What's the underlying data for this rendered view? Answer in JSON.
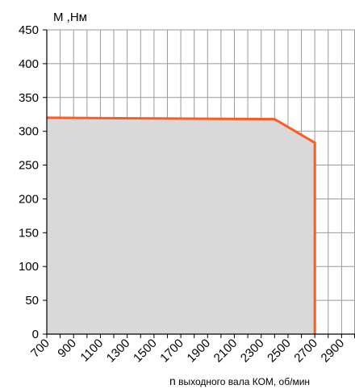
{
  "chart_data": {
    "type": "area",
    "ylabel": "M ,Нм",
    "xlabel_var": "n",
    "xlabel_rest": " выходного вала КОМ, об/мин",
    "xlim": [
      700,
      3000
    ],
    "ylim": [
      0,
      450
    ],
    "x_ticks": [
      700,
      900,
      1100,
      1300,
      1500,
      1700,
      1900,
      2100,
      2300,
      2500,
      2700,
      2900
    ],
    "x_tick_labels": [
      "700",
      "900",
      "1100",
      "1300",
      "1500",
      "1700",
      "1900",
      "2100",
      "2300",
      "2500",
      "2700",
      "2900"
    ],
    "y_ticks": [
      0,
      50,
      100,
      150,
      200,
      250,
      300,
      350,
      400,
      450
    ],
    "y_tick_labels": [
      "0",
      "50",
      "100",
      "150",
      "200",
      "250",
      "300",
      "350",
      "400",
      "450"
    ],
    "grid": true,
    "series": [
      {
        "x": [
          700,
          2400,
          2700,
          2700
        ],
        "y": [
          320,
          318,
          283,
          0
        ]
      }
    ],
    "colors": {
      "line": "#ff5a1f",
      "fill": "#d9d9d9",
      "grid": "#9a9a9a",
      "axis": "#000000"
    }
  }
}
